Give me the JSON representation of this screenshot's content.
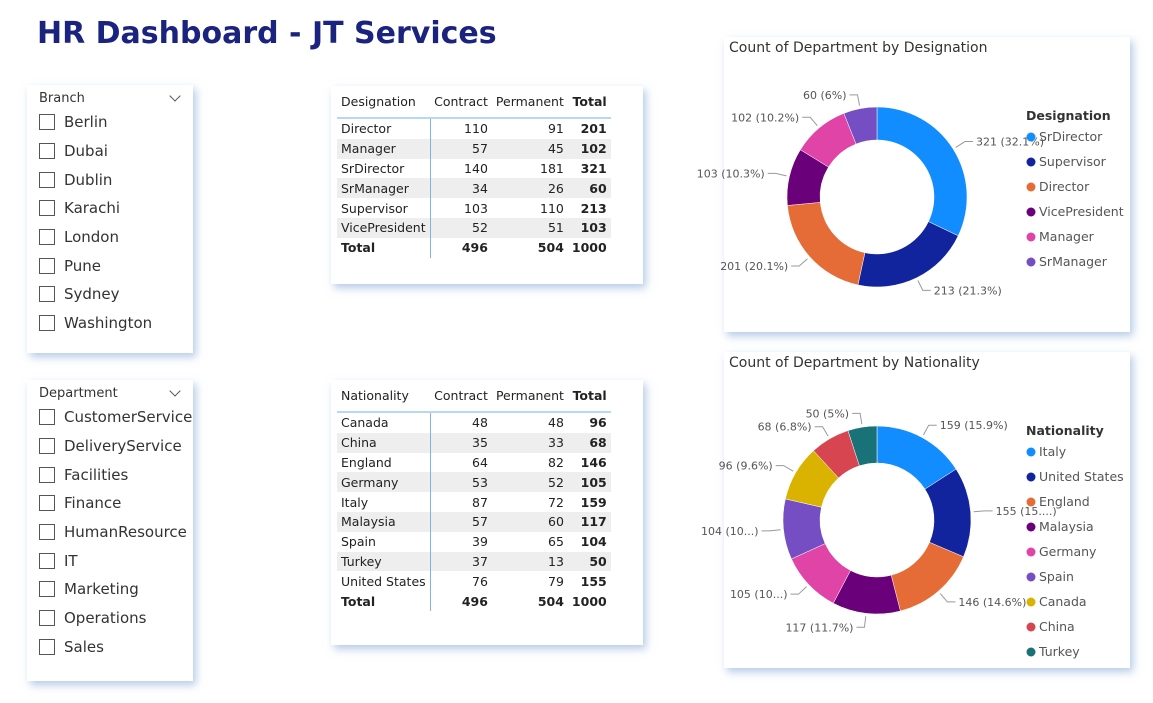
{
  "header": {
    "title": "HR Dashboard - JT Services"
  },
  "slicers": [
    {
      "title": "Branch",
      "items": [
        "Berlin",
        "Dubai",
        "Dublin",
        "Karachi",
        "London",
        "Pune",
        "Sydney",
        "Washington"
      ]
    },
    {
      "title": "Department",
      "items": [
        "CustomerService",
        "DeliveryService",
        "Facilities",
        "Finance",
        "HumanResource",
        "IT",
        "Marketing",
        "Operations",
        "Sales"
      ]
    }
  ],
  "tables": [
    {
      "columns": [
        "Designation",
        "Contract",
        "Permanent",
        "Total"
      ],
      "rows": [
        [
          "Director",
          110,
          91,
          201
        ],
        [
          "Manager",
          57,
          45,
          102
        ],
        [
          "SrDirector",
          140,
          181,
          321
        ],
        [
          "SrManager",
          34,
          26,
          60
        ],
        [
          "Supervisor",
          103,
          110,
          213
        ],
        [
          "VicePresident",
          52,
          51,
          103
        ]
      ],
      "total": [
        "Total",
        496,
        504,
        1000
      ]
    },
    {
      "columns": [
        "Nationality",
        "Contract",
        "Permanent",
        "Total"
      ],
      "rows": [
        [
          "Canada",
          48,
          48,
          96
        ],
        [
          "China",
          35,
          33,
          68
        ],
        [
          "England",
          64,
          82,
          146
        ],
        [
          "Germany",
          53,
          52,
          105
        ],
        [
          "Italy",
          87,
          72,
          159
        ],
        [
          "Malaysia",
          57,
          60,
          117
        ],
        [
          "Spain",
          39,
          65,
          104
        ],
        [
          "Turkey",
          37,
          13,
          50
        ],
        [
          "United States",
          76,
          79,
          155
        ]
      ],
      "total": [
        "Total",
        496,
        504,
        1000
      ]
    }
  ],
  "chart_data": [
    {
      "type": "donut",
      "title": "Count of Department by Designation",
      "legend_title": "Designation",
      "categories": [
        "SrDirector",
        "Supervisor",
        "Director",
        "VicePresident",
        "Manager",
        "SrManager"
      ],
      "values": [
        321,
        213,
        201,
        103,
        102,
        60
      ],
      "value_labels": [
        "321 (32.1%)",
        "213 (21.3%)",
        "201 (20.1%)",
        "103 (10.3%)",
        "102 (10.2%)",
        "60 (6%)"
      ],
      "colors": [
        "#118DFF",
        "#12239E",
        "#E66C37",
        "#6B007B",
        "#E044A7",
        "#744EC2"
      ]
    },
    {
      "type": "donut",
      "title": "Count of Department by Nationality",
      "legend_title": "Nationality",
      "categories": [
        "Italy",
        "United States",
        "England",
        "Malaysia",
        "Germany",
        "Spain",
        "Canada",
        "China",
        "Turkey"
      ],
      "values": [
        159,
        155,
        146,
        117,
        105,
        104,
        96,
        68,
        50
      ],
      "value_labels": [
        "159 (15.9%)",
        "155 (15....)",
        "146 (14.6%)",
        "117 (11.7%)",
        "105 (10...)",
        "104 (10...)",
        "96 (9.6%)",
        "68 (6.8%)",
        "50 (5%)"
      ],
      "colors": [
        "#118DFF",
        "#12239E",
        "#E66C37",
        "#6B007B",
        "#E044A7",
        "#744EC2",
        "#D9B300",
        "#D64550",
        "#197278"
      ]
    }
  ]
}
